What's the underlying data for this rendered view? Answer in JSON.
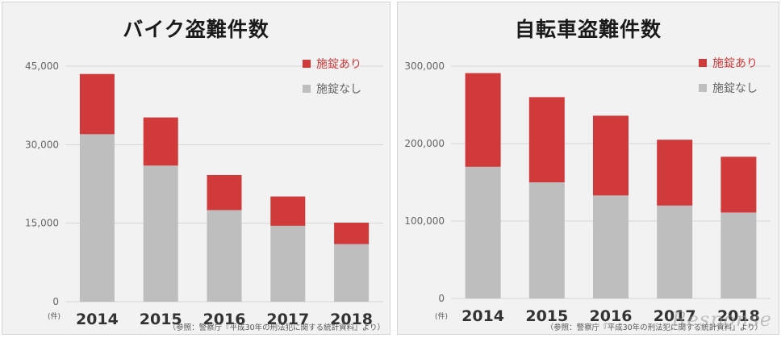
{
  "colors": {
    "locked": "#d03a3a",
    "unlocked": "#bebebe",
    "grid": "#d6d6d6",
    "axis_text": "#666666",
    "year_text": "#333333"
  },
  "source_note": "（参照：警察庁『平成30年の刑法犯に関する統計資料』より）",
  "unit_label": "(件)",
  "watermark": "Response",
  "chart_data": [
    {
      "type": "bar",
      "stacked": true,
      "title": "バイク盗難件数",
      "categories": [
        "2014",
        "2015",
        "2016",
        "2017",
        "2018"
      ],
      "ylim": [
        0,
        45000
      ],
      "yticks": [
        0,
        15000,
        30000,
        45000
      ],
      "ytick_labels": [
        "0",
        "15,000",
        "30,000",
        "45,000"
      ],
      "grid": true,
      "legend": "top-right",
      "series": [
        {
          "name": "施錠なし",
          "values": [
            32000,
            26000,
            17500,
            14500,
            11000
          ]
        },
        {
          "name": "施錠あり",
          "values": [
            11500,
            9200,
            6700,
            5600,
            4100
          ]
        }
      ]
    },
    {
      "type": "bar",
      "stacked": true,
      "title": "自転車盗難件数",
      "categories": [
        "2014",
        "2015",
        "2016",
        "2017",
        "2018"
      ],
      "ylim": [
        0,
        300000
      ],
      "yticks": [
        0,
        100000,
        200000,
        300000
      ],
      "ytick_labels": [
        "0",
        "100,000",
        "200,000",
        "300,000"
      ],
      "grid": true,
      "legend": "top-right",
      "series": [
        {
          "name": "施錠なし",
          "values": [
            170000,
            150000,
            133000,
            120000,
            111000
          ]
        },
        {
          "name": "施錠あり",
          "values": [
            121000,
            110000,
            103000,
            85000,
            72000
          ]
        }
      ]
    }
  ]
}
